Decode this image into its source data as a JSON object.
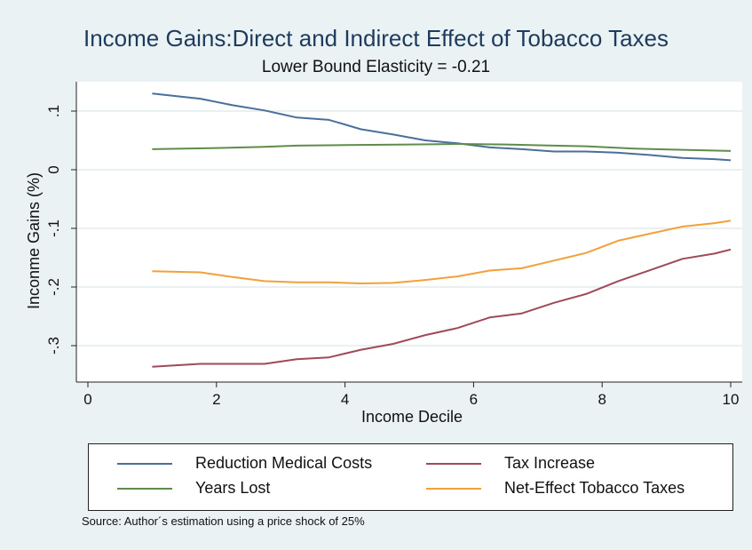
{
  "chart_data": {
    "type": "line",
    "title": "Income Gains:Direct and Indirect Effect of Tobacco Taxes",
    "subtitle": "Lower Bound Elasticity = -0.21",
    "xlabel": "Income Decile",
    "ylabel": "Inconme Gains (%)",
    "xlim": [
      0,
      10
    ],
    "ylim": [
      -0.35,
      0.15
    ],
    "xticks": [
      0,
      2,
      4,
      6,
      8,
      10
    ],
    "yticks": [
      -0.3,
      -0.2,
      -0.1,
      0,
      0.1
    ],
    "xtick_labels": [
      "0",
      "2",
      "4",
      "6",
      "8",
      "10"
    ],
    "ytick_labels": [
      "-.3",
      "-.2",
      "-.1",
      "0",
      ".1"
    ],
    "grid": true,
    "legend_position": "bottom",
    "series": [
      {
        "name": "Reduction Medical Costs",
        "color": "#4a6f9a",
        "x": [
          1,
          1.75,
          2.25,
          2.75,
          3.25,
          3.75,
          4.25,
          4.75,
          5.25,
          5.75,
          6.25,
          6.75,
          7.25,
          7.75,
          8.25,
          8.75,
          9.25,
          9.75,
          10
        ],
        "y": [
          0.13,
          0.121,
          0.11,
          0.101,
          0.089,
          0.085,
          0.069,
          0.06,
          0.05,
          0.045,
          0.038,
          0.035,
          0.031,
          0.031,
          0.029,
          0.025,
          0.02,
          0.018,
          0.016
        ]
      },
      {
        "name": "Tax Increase",
        "color": "#9e4a59",
        "x": [
          1,
          1.75,
          2.25,
          2.75,
          3.25,
          3.75,
          4.25,
          4.75,
          5.25,
          5.75,
          6.25,
          6.75,
          7.25,
          7.75,
          8.25,
          8.75,
          9.25,
          9.75,
          10
        ],
        "y": [
          -0.336,
          -0.331,
          -0.331,
          -0.331,
          -0.323,
          -0.32,
          -0.307,
          -0.297,
          -0.282,
          -0.27,
          -0.252,
          -0.245,
          -0.227,
          -0.212,
          -0.19,
          -0.171,
          -0.152,
          -0.143,
          -0.136
        ]
      },
      {
        "name": "Years Lost",
        "color": "#5f8c4a",
        "x": [
          1,
          2,
          2.75,
          3.25,
          4,
          5,
          5.75,
          6.5,
          7.25,
          7.75,
          8.5,
          9.25,
          10
        ],
        "y": [
          0.035,
          0.037,
          0.039,
          0.041,
          0.042,
          0.043,
          0.044,
          0.043,
          0.041,
          0.04,
          0.036,
          0.034,
          0.032
        ]
      },
      {
        "name": "Net-Effect Tobacco Taxes",
        "color": "#f2a13a",
        "x": [
          1,
          1.75,
          2.25,
          2.75,
          3.25,
          3.75,
          4.25,
          4.75,
          5.25,
          5.75,
          6.25,
          6.75,
          7.25,
          7.75,
          8.25,
          8.75,
          9.25,
          9.75,
          10
        ],
        "y": [
          -0.173,
          -0.175,
          -0.183,
          -0.19,
          -0.192,
          -0.192,
          -0.194,
          -0.193,
          -0.188,
          -0.182,
          -0.172,
          -0.168,
          -0.155,
          -0.142,
          -0.121,
          -0.109,
          -0.097,
          -0.091,
          -0.087
        ]
      }
    ],
    "legend": [
      {
        "label": "Reduction Medical Costs",
        "color": "#4a6f9a"
      },
      {
        "label": "Tax Increase",
        "color": "#9e4a59"
      },
      {
        "label": "Years Lost",
        "color": "#5f8c4a"
      },
      {
        "label": "Net-Effect Tobacco Taxes",
        "color": "#f2a13a"
      }
    ],
    "source": "Source: Author´s estimation using a price shock of 25%"
  }
}
